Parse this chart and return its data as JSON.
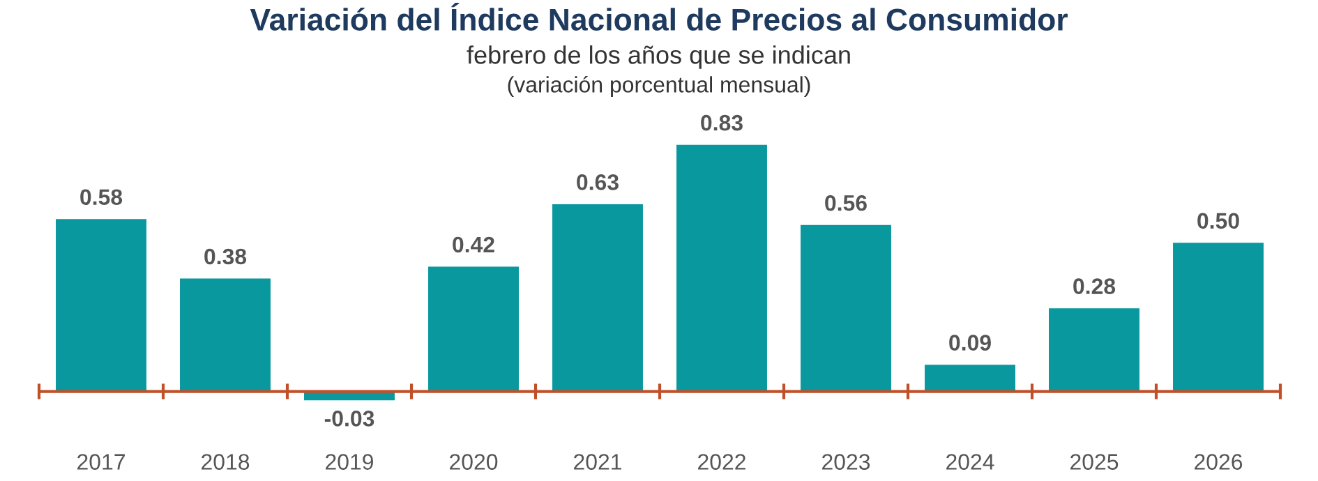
{
  "chart_data": {
    "type": "bar",
    "title": "Variación del Índice Nacional de Precios al Consumidor",
    "subtitle": "febrero de los años que se indican\n(variación porcentual mensual)",
    "categories": [
      "2017",
      "2018",
      "2019",
      "2020",
      "2021",
      "2022",
      "2023",
      "2024",
      "2025",
      "2026"
    ],
    "values": [
      0.58,
      0.38,
      -0.03,
      0.42,
      0.63,
      0.83,
      0.56,
      0.09,
      0.28,
      0.5
    ],
    "value_labels": [
      "0.58",
      "0.38",
      "-0.03",
      "0.42",
      "0.63",
      "0.83",
      "0.56",
      "0.09",
      "0.28",
      "0.50"
    ],
    "color": "#0a989f",
    "grid": false,
    "legend": false,
    "ref_lines": [
      {
        "axis": "y",
        "value": 0,
        "label": null,
        "color": "#c0502a"
      }
    ]
  }
}
